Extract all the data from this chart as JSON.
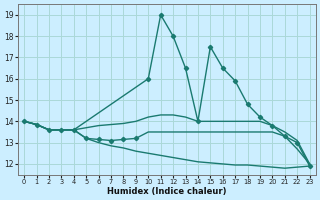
{
  "xlabel": "Humidex (Indice chaleur)",
  "bg_color": "#cceeff",
  "grid_color": "#aad8d8",
  "line_color": "#1a7a70",
  "xlim": [
    -0.5,
    23.5
  ],
  "ylim": [
    11.5,
    19.5
  ],
  "yticks": [
    12,
    13,
    14,
    15,
    16,
    17,
    18,
    19
  ],
  "xticks": [
    0,
    1,
    2,
    3,
    4,
    5,
    6,
    7,
    8,
    9,
    10,
    11,
    12,
    13,
    14,
    15,
    16,
    17,
    18,
    19,
    20,
    21,
    22,
    23
  ],
  "lines": [
    {
      "x": [
        0,
        1,
        2,
        3,
        4,
        10,
        11,
        12,
        13,
        14,
        15,
        16,
        17,
        18,
        19,
        20,
        21,
        22,
        23
      ],
      "y": [
        14.0,
        13.85,
        13.6,
        13.6,
        13.6,
        16.0,
        19.0,
        18.0,
        16.5,
        14.0,
        17.5,
        16.5,
        15.9,
        14.8,
        14.2,
        13.8,
        13.3,
        13.0,
        11.9
      ],
      "has_markers": true,
      "marker_x": [
        0,
        1,
        2,
        3,
        4,
        10,
        11,
        12,
        13,
        14,
        15,
        16,
        17,
        18,
        19,
        20,
        21,
        22,
        23
      ]
    },
    {
      "x": [
        0,
        1,
        2,
        3,
        4,
        5,
        6,
        7,
        8,
        9,
        10,
        11,
        12,
        13,
        14,
        15,
        16,
        17,
        18,
        19,
        20,
        21,
        22,
        23
      ],
      "y": [
        14.0,
        13.85,
        13.6,
        13.6,
        13.6,
        13.7,
        13.8,
        13.85,
        13.9,
        14.0,
        14.2,
        14.3,
        14.3,
        14.2,
        14.0,
        14.0,
        14.0,
        14.0,
        14.0,
        14.0,
        13.8,
        13.5,
        13.1,
        12.0
      ],
      "has_markers": false,
      "marker_x": []
    },
    {
      "x": [
        0,
        1,
        2,
        3,
        4,
        5,
        6,
        7,
        8,
        9,
        10,
        11,
        12,
        13,
        14,
        15,
        16,
        17,
        18,
        19,
        20,
        21,
        22,
        23
      ],
      "y": [
        14.0,
        13.85,
        13.6,
        13.6,
        13.6,
        13.2,
        13.15,
        13.1,
        13.15,
        13.2,
        13.5,
        13.5,
        13.5,
        13.5,
        13.5,
        13.5,
        13.5,
        13.5,
        13.5,
        13.5,
        13.5,
        13.3,
        12.7,
        12.0
      ],
      "has_markers": true,
      "marker_x": [
        5,
        6,
        7,
        8,
        9
      ]
    },
    {
      "x": [
        0,
        1,
        2,
        3,
        4,
        5,
        6,
        7,
        8,
        9,
        10,
        11,
        12,
        13,
        14,
        15,
        16,
        17,
        18,
        19,
        20,
        21,
        22,
        23
      ],
      "y": [
        14.0,
        13.85,
        13.6,
        13.6,
        13.6,
        13.2,
        13.0,
        12.85,
        12.75,
        12.6,
        12.5,
        12.4,
        12.3,
        12.2,
        12.1,
        12.05,
        12.0,
        11.95,
        11.95,
        11.9,
        11.85,
        11.8,
        11.85,
        11.9
      ],
      "has_markers": false,
      "marker_x": []
    }
  ]
}
